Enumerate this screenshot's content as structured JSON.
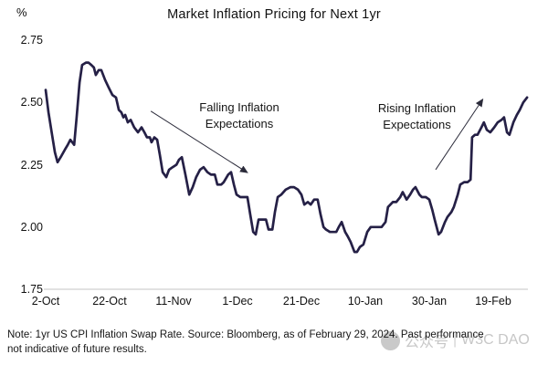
{
  "header": {
    "percent_label": "%",
    "title": "Market Inflation Pricing for Next 1yr"
  },
  "chart_data": {
    "type": "line",
    "title": "Market Inflation Pricing for Next 1yr",
    "xlabel": "",
    "ylabel": "%",
    "ylim": [
      1.75,
      2.75
    ],
    "xlim_days_from_first_tick": [
      0,
      151
    ],
    "grid": "single baseline gridline at y=1.75",
    "legend": "none",
    "line_color": "#252046",
    "gridline_color": "#d9d9d9",
    "y_ticks": [
      {
        "value": 2.75,
        "label": "2.75"
      },
      {
        "value": 2.5,
        "label": "2.50"
      },
      {
        "value": 2.25,
        "label": "2.25"
      },
      {
        "value": 2.0,
        "label": "2.00"
      },
      {
        "value": 1.75,
        "label": "1.75"
      }
    ],
    "x_ticks": [
      {
        "day": 0,
        "label": "2-Oct"
      },
      {
        "day": 20,
        "label": "22-Oct"
      },
      {
        "day": 40,
        "label": "11-Nov"
      },
      {
        "day": 60,
        "label": "1-Dec"
      },
      {
        "day": 80,
        "label": "21-Dec"
      },
      {
        "day": 100,
        "label": "10-Jan"
      },
      {
        "day": 120,
        "label": "30-Jan"
      },
      {
        "day": 140,
        "label": "19-Feb"
      }
    ],
    "series": [
      {
        "name": "1yr US CPI Inflation Swap Rate",
        "points": [
          [
            0,
            2.55
          ],
          [
            0.9,
            2.46
          ],
          [
            2,
            2.37
          ],
          [
            2.9,
            2.3
          ],
          [
            3.7,
            2.26
          ],
          [
            4.9,
            2.285
          ],
          [
            6,
            2.31
          ],
          [
            6.9,
            2.33
          ],
          [
            7.7,
            2.35
          ],
          [
            8.9,
            2.33
          ],
          [
            9.7,
            2.44
          ],
          [
            10.6,
            2.58
          ],
          [
            11.4,
            2.65
          ],
          [
            12.6,
            2.66
          ],
          [
            13.4,
            2.66
          ],
          [
            14.3,
            2.65
          ],
          [
            15.1,
            2.64
          ],
          [
            15.7,
            2.61
          ],
          [
            16.6,
            2.63
          ],
          [
            17.4,
            2.63
          ],
          [
            18.6,
            2.59
          ],
          [
            19.7,
            2.56
          ],
          [
            20.9,
            2.53
          ],
          [
            22,
            2.52
          ],
          [
            22.9,
            2.47
          ],
          [
            23.7,
            2.46
          ],
          [
            24.3,
            2.44
          ],
          [
            24.9,
            2.45
          ],
          [
            25.7,
            2.42
          ],
          [
            26.6,
            2.43
          ],
          [
            27.7,
            2.4
          ],
          [
            28.9,
            2.38
          ],
          [
            30,
            2.4
          ],
          [
            30.9,
            2.38
          ],
          [
            31.7,
            2.36
          ],
          [
            32.6,
            2.36
          ],
          [
            33.1,
            2.34
          ],
          [
            34,
            2.36
          ],
          [
            34.9,
            2.35
          ],
          [
            35.7,
            2.29
          ],
          [
            36.6,
            2.22
          ],
          [
            37.7,
            2.2
          ],
          [
            38.6,
            2.23
          ],
          [
            39.7,
            2.24
          ],
          [
            40.9,
            2.25
          ],
          [
            41.7,
            2.27
          ],
          [
            42.6,
            2.28
          ],
          [
            43.7,
            2.21
          ],
          [
            44.9,
            2.13
          ],
          [
            46,
            2.16
          ],
          [
            47.1,
            2.2
          ],
          [
            48.3,
            2.23
          ],
          [
            49.4,
            2.24
          ],
          [
            50.6,
            2.22
          ],
          [
            51.7,
            2.21
          ],
          [
            52.9,
            2.21
          ],
          [
            53.7,
            2.17
          ],
          [
            54.9,
            2.17
          ],
          [
            55.7,
            2.18
          ],
          [
            57.1,
            2.21
          ],
          [
            58,
            2.22
          ],
          [
            58.9,
            2.17
          ],
          [
            59.7,
            2.13
          ],
          [
            60.9,
            2.12
          ],
          [
            62.3,
            2.12
          ],
          [
            63.1,
            2.12
          ],
          [
            64,
            2.05
          ],
          [
            64.9,
            1.98
          ],
          [
            65.7,
            1.97
          ],
          [
            66.6,
            2.03
          ],
          [
            67.7,
            2.03
          ],
          [
            68.9,
            2.03
          ],
          [
            69.7,
            1.99
          ],
          [
            70.9,
            1.99
          ],
          [
            71.7,
            2.06
          ],
          [
            72.6,
            2.12
          ],
          [
            73.7,
            2.13
          ],
          [
            75.1,
            2.15
          ],
          [
            76.6,
            2.16
          ],
          [
            77.7,
            2.16
          ],
          [
            78.9,
            2.15
          ],
          [
            80,
            2.13
          ],
          [
            80.9,
            2.09
          ],
          [
            82,
            2.1
          ],
          [
            82.9,
            2.09
          ],
          [
            84,
            2.11
          ],
          [
            85.1,
            2.11
          ],
          [
            86,
            2.05
          ],
          [
            86.9,
            2.0
          ],
          [
            87.7,
            1.99
          ],
          [
            88.9,
            1.98
          ],
          [
            90,
            1.98
          ],
          [
            90.9,
            1.98
          ],
          [
            91.7,
            2.0
          ],
          [
            92.6,
            2.02
          ],
          [
            93.7,
            1.98
          ],
          [
            94.6,
            1.96
          ],
          [
            95.4,
            1.94
          ],
          [
            96.6,
            1.9
          ],
          [
            97.4,
            1.9
          ],
          [
            98.3,
            1.92
          ],
          [
            99.4,
            1.93
          ],
          [
            100.6,
            1.98
          ],
          [
            101.7,
            2.0
          ],
          [
            102.9,
            2.0
          ],
          [
            104,
            2.0
          ],
          [
            105.1,
            2.0
          ],
          [
            106.3,
            2.02
          ],
          [
            107.1,
            2.08
          ],
          [
            108.6,
            2.1
          ],
          [
            109.7,
            2.1
          ],
          [
            110.9,
            2.12
          ],
          [
            111.7,
            2.14
          ],
          [
            112.9,
            2.11
          ],
          [
            114,
            2.13
          ],
          [
            114.9,
            2.15
          ],
          [
            115.7,
            2.16
          ],
          [
            116.9,
            2.13
          ],
          [
            117.7,
            2.12
          ],
          [
            118.9,
            2.12
          ],
          [
            120,
            2.11
          ],
          [
            120.9,
            2.07
          ],
          [
            121.7,
            2.03
          ],
          [
            122.9,
            1.97
          ],
          [
            123.7,
            1.98
          ],
          [
            124.9,
            2.02
          ],
          [
            125.7,
            2.04
          ],
          [
            126.9,
            2.06
          ],
          [
            127.7,
            2.08
          ],
          [
            128.9,
            2.13
          ],
          [
            129.7,
            2.17
          ],
          [
            130.9,
            2.18
          ],
          [
            132,
            2.18
          ],
          [
            132.9,
            2.19
          ],
          [
            133.4,
            2.36
          ],
          [
            134.3,
            2.37
          ],
          [
            135.1,
            2.37
          ],
          [
            136.3,
            2.4
          ],
          [
            137.1,
            2.42
          ],
          [
            138,
            2.39
          ],
          [
            139.1,
            2.38
          ],
          [
            140.3,
            2.4
          ],
          [
            141.4,
            2.42
          ],
          [
            142.6,
            2.43
          ],
          [
            143.4,
            2.44
          ],
          [
            144.3,
            2.38
          ],
          [
            145.1,
            2.37
          ],
          [
            146.3,
            2.42
          ],
          [
            147.4,
            2.45
          ],
          [
            148.3,
            2.47
          ],
          [
            149.4,
            2.5
          ],
          [
            150.6,
            2.52
          ]
        ]
      }
    ],
    "annotations": [
      {
        "line1": "Falling Inflation",
        "line2": "Expectations",
        "arrow": {
          "from_day": 32.9,
          "from_value": 2.465,
          "to_day": 62.9,
          "to_value": 2.22
        }
      },
      {
        "line1": "Rising Inflation",
        "line2": "Expectations",
        "arrow": {
          "from_day": 122.0,
          "from_value": 2.23,
          "to_day": 136.6,
          "to_value": 2.51
        }
      }
    ]
  },
  "footer": {
    "note": "Note: 1yr US CPI Inflation Swap Rate. Source: Bloomberg, as of February 29, 2024. Past performance not indicative of future results."
  },
  "watermark": {
    "label": "公众号",
    "separator": "|",
    "name": "W3C DAO"
  }
}
